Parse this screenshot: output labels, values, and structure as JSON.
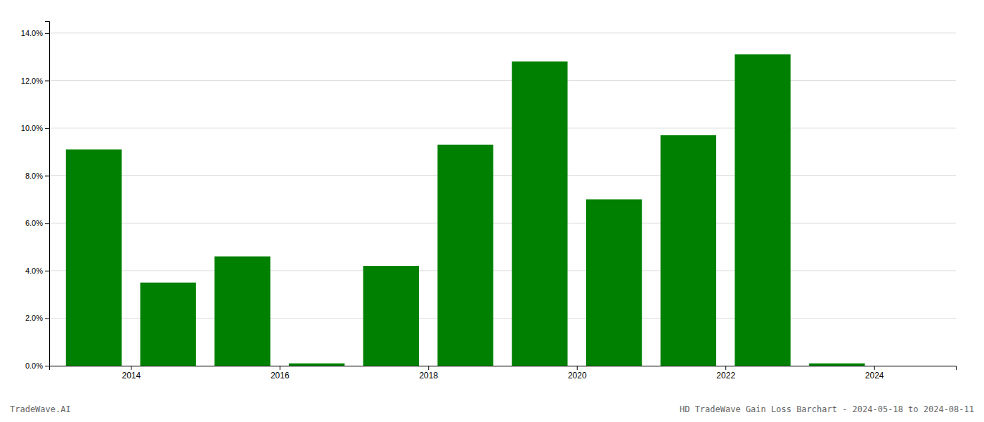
{
  "chart_data": {
    "type": "bar",
    "x": [
      2013,
      2014,
      2015,
      2016,
      2017,
      2018,
      2019,
      2020,
      2021,
      2022,
      2023
    ],
    "values": [
      0.091,
      0.035,
      0.046,
      0.001,
      0.042,
      0.093,
      0.128,
      0.07,
      0.097,
      0.131,
      0.001
    ],
    "color": "#008000",
    "xlim": [
      2012.4,
      2024.6
    ],
    "xticks": [
      {
        "value": 2013.5,
        "label": "2014"
      },
      {
        "value": 2015.5,
        "label": "2016"
      },
      {
        "value": 2017.5,
        "label": "2018"
      },
      {
        "value": 2019.5,
        "label": "2020"
      },
      {
        "value": 2021.5,
        "label": "2022"
      },
      {
        "value": 2023.5,
        "label": "2024"
      }
    ],
    "ylim": [
      0,
      0.145
    ],
    "yticks": [
      {
        "value": 0,
        "label": "0.0%"
      },
      {
        "value": 0.02,
        "label": "2.0%"
      },
      {
        "value": 0.04,
        "label": "4.0%"
      },
      {
        "value": 0.06,
        "label": "6.0%"
      },
      {
        "value": 0.08,
        "label": "8.0%"
      },
      {
        "value": 0.1,
        "label": "10.0%"
      },
      {
        "value": 0.12,
        "label": "12.0%"
      },
      {
        "value": 0.14,
        "label": "14.0%"
      }
    ],
    "grid": true,
    "annotations": [
      "TradeWave.AI",
      "HD TradeWave Gain Loss Barchart - 2024-05-18 to 2024-08-11"
    ]
  }
}
